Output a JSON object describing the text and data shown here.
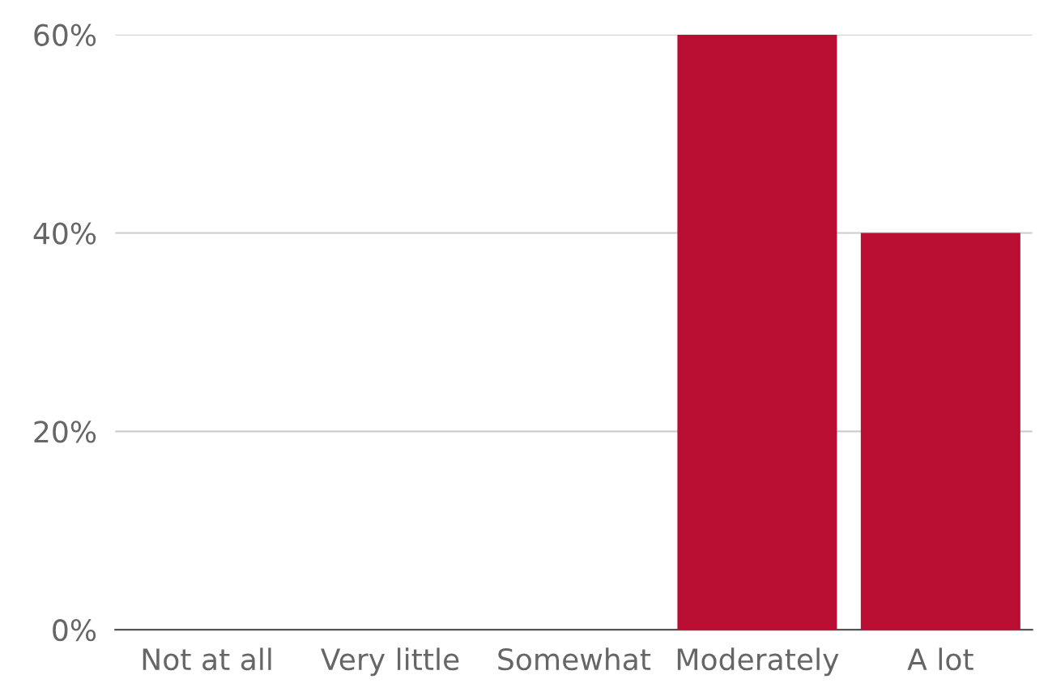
{
  "chart_data": {
    "type": "bar",
    "categories": [
      "Not at all",
      "Very little",
      "Somewhat",
      "Moderately",
      "A lot"
    ],
    "values": [
      0,
      0,
      0,
      60,
      40
    ],
    "color": "#b90e31",
    "ylim": [
      0,
      60
    ],
    "yticks": [
      {
        "value": 0,
        "label": "0%"
      },
      {
        "value": 20,
        "label": "20%"
      },
      {
        "value": 40,
        "label": "40%"
      },
      {
        "value": 60,
        "label": "60%"
      }
    ],
    "grid": "y"
  }
}
